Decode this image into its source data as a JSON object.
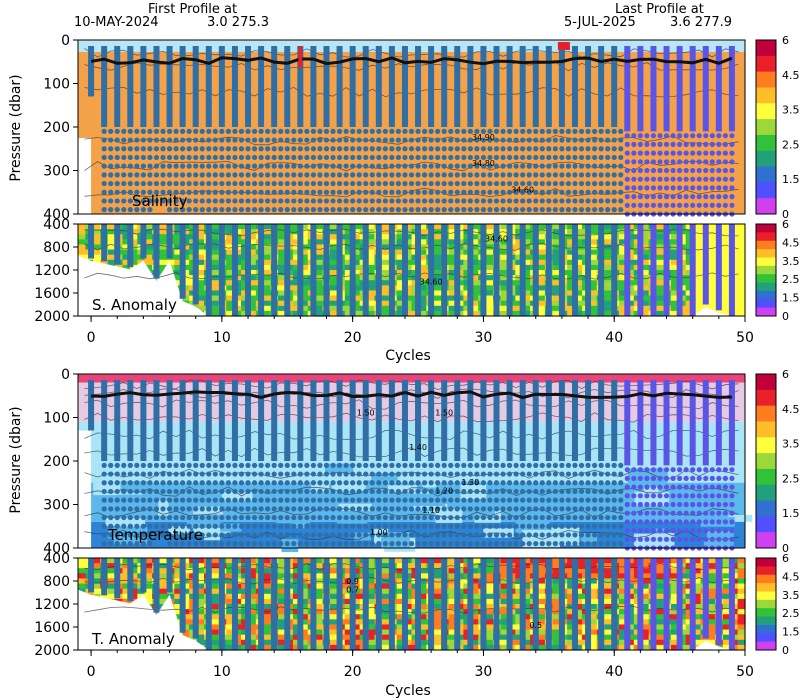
{
  "header": {
    "first_label": "First Profile at",
    "first_date": "10-MAY-2024",
    "first_vals": "3.0 275.3",
    "last_label": "Last Profile at",
    "last_date": "5-JUL-2025",
    "last_vals": "3.6 277.9"
  },
  "chart_data": [
    {
      "type": "heatmap",
      "name": "Salinity",
      "panel_label": "Salinity",
      "ylabel": "Pressure (dbar)",
      "ylim": [
        400,
        0
      ],
      "yticks": [
        0,
        100,
        200,
        300,
        400
      ],
      "xlim": [
        -1,
        50
      ],
      "contours": [
        {
          "label": "34.90",
          "x": 30,
          "y": 230
        },
        {
          "label": "34.80",
          "x": 30,
          "y": 290
        },
        {
          "label": "34.60",
          "x": 33,
          "y": 350
        }
      ],
      "profile_depths": [
        130,
        400,
        400,
        400,
        400,
        380,
        400,
        400,
        400,
        400,
        400,
        400,
        400,
        400,
        400,
        400,
        400,
        400,
        400,
        400,
        400,
        400,
        400,
        400,
        400,
        400,
        400,
        400,
        400,
        400,
        400,
        400,
        400,
        400,
        400,
        400,
        400,
        400,
        400,
        400,
        400,
        400,
        400,
        400,
        400,
        400,
        400,
        400,
        400,
        400
      ]
    },
    {
      "type": "heatmap",
      "name": "S. Anomaly",
      "panel_label": "S. Anomaly",
      "ylim": [
        2000,
        400
      ],
      "yticks": [
        400,
        800,
        1200,
        1600,
        2000
      ],
      "contours": [
        {
          "label": "34.60",
          "x": 31,
          "y": 700
        },
        {
          "label": "34.60",
          "x": 26,
          "y": 1450
        }
      ],
      "profile_depths": [
        1000,
        1050,
        1100,
        1150,
        1000,
        1350,
        1000,
        1700,
        1800,
        2000,
        2000,
        2000,
        2000,
        2000,
        2000,
        2000,
        2000,
        2000,
        2000,
        2000,
        2000,
        2000,
        2000,
        2000,
        2000,
        2000,
        2000,
        2000,
        2000,
        2000,
        2000,
        2000,
        2000,
        2000,
        2000,
        2000,
        2000,
        2000,
        2000,
        2000,
        2000,
        2000,
        2000,
        2000,
        2000,
        2000,
        2000,
        1800,
        1900,
        2000
      ]
    },
    {
      "type": "heatmap",
      "name": "Temperature",
      "panel_label": "Temperature",
      "ylabel": "Pressure (dbar)",
      "ylim": [
        400,
        0
      ],
      "yticks": [
        0,
        100,
        200,
        300,
        400
      ],
      "contours": [
        {
          "label": "1.50",
          "x": 21,
          "y": 95
        },
        {
          "label": "1.50",
          "x": 27,
          "y": 95
        },
        {
          "label": "1.40",
          "x": 25,
          "y": 175
        },
        {
          "label": "1.30",
          "x": 29,
          "y": 255
        },
        {
          "label": "1.20",
          "x": 27,
          "y": 275
        },
        {
          "label": "1.10",
          "x": 26,
          "y": 320
        },
        {
          "label": "1.00",
          "x": 22,
          "y": 370
        }
      ],
      "profile_depths": [
        130,
        400,
        400,
        400,
        400,
        380,
        400,
        400,
        400,
        400,
        400,
        400,
        400,
        400,
        400,
        400,
        400,
        400,
        400,
        400,
        400,
        400,
        400,
        400,
        400,
        400,
        400,
        400,
        400,
        400,
        400,
        400,
        400,
        400,
        400,
        400,
        400,
        400,
        400,
        400,
        400,
        400,
        400,
        400,
        400,
        400,
        400,
        400,
        400,
        400
      ]
    },
    {
      "type": "heatmap",
      "name": "T. Anomaly",
      "panel_label": "T. Anomaly",
      "xlabel": "Cycles",
      "ylim": [
        2000,
        400
      ],
      "yticks": [
        400,
        800,
        1200,
        1600,
        2000
      ],
      "xticks": [
        0,
        10,
        20,
        30,
        40,
        50
      ],
      "contours": [
        {
          "label": "0.9",
          "x": 20,
          "y": 850
        },
        {
          "label": "0.7",
          "x": 20,
          "y": 1000
        },
        {
          "label": "0.5",
          "x": 34,
          "y": 1620
        }
      ],
      "profile_depths": [
        1000,
        1050,
        1100,
        1150,
        1000,
        1350,
        1000,
        1700,
        1800,
        2000,
        2000,
        2000,
        2000,
        2000,
        2000,
        2000,
        2000,
        2000,
        2000,
        2000,
        2000,
        2000,
        2000,
        2000,
        2000,
        2000,
        2000,
        2000,
        2000,
        2000,
        2000,
        2000,
        2000,
        2000,
        2000,
        2000,
        2000,
        2000,
        2000,
        2000,
        2000,
        2000,
        2000,
        2000,
        2000,
        2000,
        2000,
        1800,
        1900,
        2000
      ]
    }
  ],
  "xaxis": {
    "label": "Cycles",
    "ticks": [
      "0",
      "10",
      "20",
      "30",
      "40",
      "50"
    ]
  },
  "colorbar": {
    "labels": [
      "6",
      "4.5",
      "3.5",
      "2.5",
      "1.5",
      "0"
    ],
    "colors": [
      "#c0003a",
      "#e8202a",
      "#ff7d1e",
      "#ffbe28",
      "#ffff3c",
      "#9cd83a",
      "#32c23a",
      "#22a07a",
      "#3070d0",
      "#5050ff",
      "#d040f0"
    ]
  },
  "colors": {
    "salinity_fill": "#f4a24a",
    "profile_old": "#2f6fa6",
    "profile_new": "#5a55e6",
    "temp_top": "#e8457a",
    "temp_upper": "#e6c9e3",
    "temp_mid": "#a9e4f7",
    "temp_deep": "#5ab8ec",
    "temp_bottom": "#2b84d8"
  }
}
